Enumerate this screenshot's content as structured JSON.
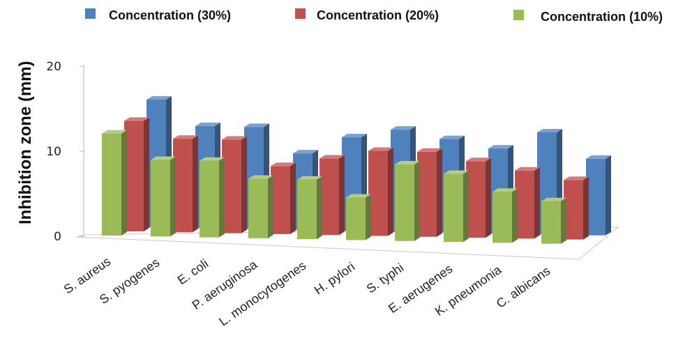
{
  "chart_data": {
    "type": "bar",
    "title": "",
    "ylabel": "Inhibition zone (mm)",
    "xlabel": "",
    "ylim": [
      0,
      20
    ],
    "yticks": [
      "0",
      "10",
      "20"
    ],
    "legend_position": "top",
    "categories": [
      "S. aureus",
      "S. pyogenes",
      "E. coli",
      "P. aeruginosa",
      "L. monocytogenes",
      "H. pylori",
      "S. typhi",
      "E. aerugenes",
      "K. pneumonia",
      "C. albicans"
    ],
    "series": [
      {
        "name": "Concentration (30%)",
        "color": "#4F81BD",
        "values": [
          15,
          12,
          12,
          9,
          11,
          12,
          11,
          10,
          12,
          9
        ]
      },
      {
        "name": "Concentration (20%)",
        "color": "#C0504D",
        "values": [
          13,
          11,
          11,
          8,
          9,
          10,
          10,
          9,
          8,
          7
        ]
      },
      {
        "name": "Concentration (10%)",
        "color": "#9BBB59",
        "values": [
          12,
          9,
          9,
          7,
          7,
          5,
          9,
          8,
          6,
          5
        ]
      }
    ]
  }
}
